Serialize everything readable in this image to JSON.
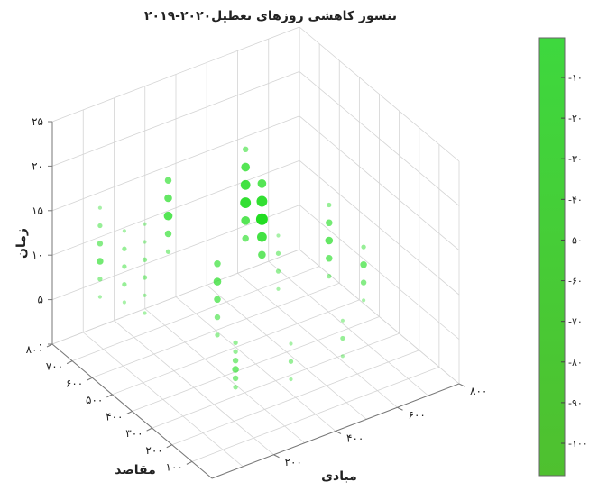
{
  "chart_data": {
    "type": "scatter",
    "title": "تنسور کاهشی روزهای تعطیل۲۰۲۰-۲۰۱۹",
    "xlabel": "مبادی",
    "ylabel": "مقاصد",
    "zlabel": "زمان",
    "x_ticks": [
      "۲۰۰",
      "۴۰۰",
      "۶۰۰",
      "۸۰۰"
    ],
    "y_ticks": [
      "۱۰۰",
      "۲۰۰",
      "۳۰۰",
      "۴۰۰",
      "۵۰۰",
      "۶۰۰",
      "۷۰۰",
      "۸۰۰"
    ],
    "z_ticks": [
      "۰",
      "۵",
      "۱۰",
      "۱۵",
      "۲۰",
      "۲۵"
    ],
    "xlim": [
      0,
      800
    ],
    "ylim": [
      0,
      800
    ],
    "zlim": [
      0,
      25
    ],
    "colorbar": {
      "ticks": [
        "-۱۰",
        "-۲۰",
        "-۳۰",
        "-۴۰",
        "-۵۰",
        "-۶۰",
        "-۷۰",
        "-۸۰",
        "-۹۰",
        "-۱۰۰"
      ],
      "color_top": "#3ed83e",
      "color_bottom": "#4fc02f"
    },
    "marker_color": "#22dd22",
    "grid": true,
    "columns": [
      {
        "x": 90,
        "y": 700,
        "z": [
          6,
          8,
          10,
          12,
          14,
          16
        ],
        "magnitude": [
          0.2,
          0.3,
          0.5,
          0.4,
          0.3,
          0.2
        ]
      },
      {
        "x": 130,
        "y": 640,
        "z": [
          6,
          8,
          10,
          12,
          14
        ],
        "magnitude": [
          0.2,
          0.3,
          0.3,
          0.3,
          0.2
        ]
      },
      {
        "x": 170,
        "y": 600,
        "z": [
          5,
          7,
          9,
          11,
          13,
          15
        ],
        "magnitude": [
          0.2,
          0.2,
          0.3,
          0.3,
          0.2,
          0.2
        ]
      },
      {
        "x": 220,
        "y": 560,
        "z": [
          12,
          14,
          16,
          18,
          20
        ],
        "magnitude": [
          0.3,
          0.5,
          0.7,
          0.6,
          0.5
        ]
      },
      {
        "x": 250,
        "y": 360,
        "z": [
          6,
          8,
          10,
          12,
          14
        ],
        "magnitude": [
          0.3,
          0.4,
          0.5,
          0.6,
          0.5
        ]
      },
      {
        "x": 270,
        "y": 300,
        "z": [
          1,
          2,
          3,
          4,
          5,
          6
        ],
        "magnitude": [
          0.3,
          0.4,
          0.5,
          0.4,
          0.3,
          0.3
        ]
      },
      {
        "x": 380,
        "y": 420,
        "z": [
          14,
          16,
          18,
          20,
          22,
          24
        ],
        "magnitude": [
          0.5,
          0.7,
          0.9,
          0.8,
          0.7,
          0.4
        ]
      },
      {
        "x": 420,
        "y": 400,
        "z": [
          12,
          14,
          16,
          18,
          20
        ],
        "magnitude": [
          0.6,
          0.8,
          1.0,
          0.9,
          0.7
        ]
      },
      {
        "x": 460,
        "y": 380,
        "z": [
          8,
          10,
          12,
          14
        ],
        "magnitude": [
          0.2,
          0.3,
          0.3,
          0.2
        ]
      },
      {
        "x": 560,
        "y": 280,
        "z": [
          10,
          12,
          14,
          16,
          18
        ],
        "magnitude": [
          0.3,
          0.5,
          0.6,
          0.5,
          0.3
        ]
      },
      {
        "x": 620,
        "y": 200,
        "z": [
          8,
          10,
          12,
          14
        ],
        "magnitude": [
          0.2,
          0.4,
          0.5,
          0.3
        ]
      },
      {
        "x": 520,
        "y": 150,
        "z": [
          4,
          6,
          8
        ],
        "magnitude": [
          0.2,
          0.3,
          0.2
        ]
      },
      {
        "x": 320,
        "y": 100,
        "z": [
          5,
          7,
          9
        ],
        "magnitude": [
          0.2,
          0.3,
          0.2
        ]
      }
    ]
  }
}
